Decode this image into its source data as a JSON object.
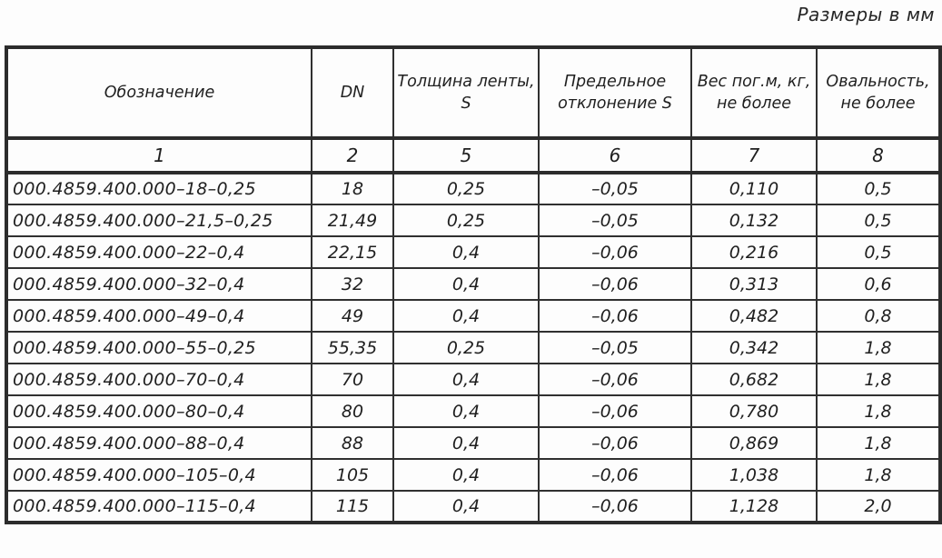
{
  "title": "Размеры в мм",
  "colors": {
    "ink": "#2c2c2c",
    "paper": "#fdfdfd"
  },
  "table": {
    "headers": {
      "designation": "Обозначение",
      "dn": "DN",
      "thickness": "Толщина ленты,\nS",
      "deviation": "Предельное\nотклонение S",
      "weight": "Вес пог.м, кг,\nне более",
      "ovality": "Овальность,\nне более"
    },
    "column_numbers": [
      "1",
      "2",
      "5",
      "6",
      "7",
      "8"
    ],
    "rows": [
      [
        "000.4859.400.000–18–0,25",
        "18",
        "0,25",
        "–0,05",
        "0,110",
        "0,5"
      ],
      [
        "000.4859.400.000–21,5–0,25",
        "21,49",
        "0,25",
        "–0,05",
        "0,132",
        "0,5"
      ],
      [
        "000.4859.400.000–22–0,4",
        "22,15",
        "0,4",
        "–0,06",
        "0,216",
        "0,5"
      ],
      [
        "000.4859.400.000–32–0,4",
        "32",
        "0,4",
        "–0,06",
        "0,313",
        "0,6"
      ],
      [
        "000.4859.400.000–49–0,4",
        "49",
        "0,4",
        "–0,06",
        "0,482",
        "0,8"
      ],
      [
        "000.4859.400.000–55–0,25",
        "55,35",
        "0,25",
        "–0,05",
        "0,342",
        "1,8"
      ],
      [
        "000.4859.400.000–70–0,4",
        "70",
        "0,4",
        "–0,06",
        "0,682",
        "1,8"
      ],
      [
        "000.4859.400.000–80–0,4",
        "80",
        "0,4",
        "–0,06",
        "0,780",
        "1,8"
      ],
      [
        "000.4859.400.000–88–0,4",
        "88",
        "0,4",
        "–0,06",
        "0,869",
        "1,8"
      ],
      [
        "000.4859.400.000–105–0,4",
        "105",
        "0,4",
        "–0,06",
        "1,038",
        "1,8"
      ],
      [
        "000.4859.400.000–115–0,4",
        "115",
        "0,4",
        "–0,06",
        "1,128",
        "2,0"
      ]
    ]
  }
}
